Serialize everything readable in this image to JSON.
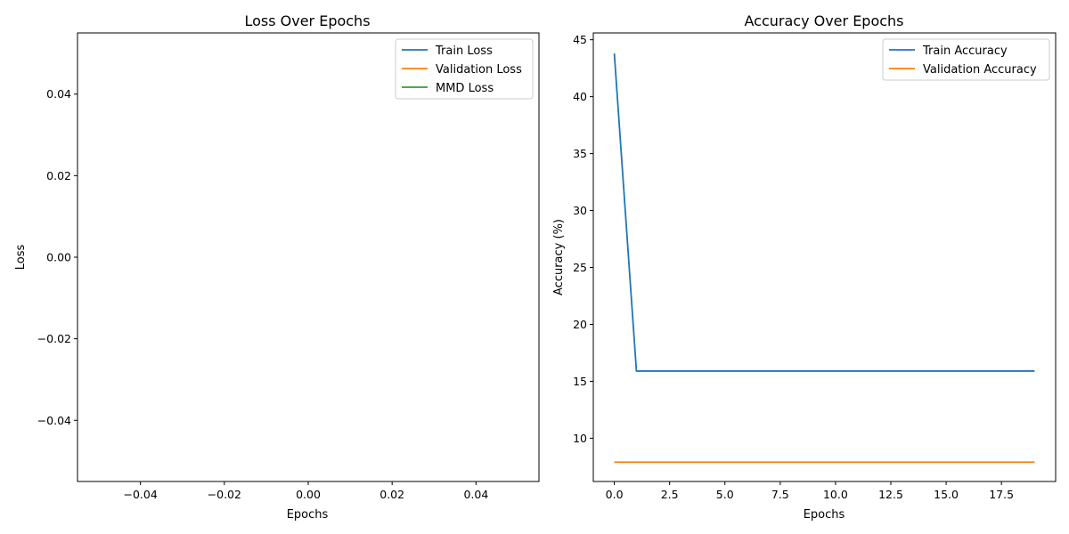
{
  "colors": {
    "series_1": "#1f77b4",
    "series_2": "#ff7f0e",
    "series_3": "#2ca02c",
    "axes": "#000000",
    "legend_border": "#cccccc"
  },
  "chart_data": [
    {
      "type": "line",
      "title": "Loss Over Epochs",
      "xlabel": "Epochs",
      "ylabel": "Loss",
      "xlim": [
        -0.055,
        0.055
      ],
      "ylim": [
        -0.055,
        0.055
      ],
      "xticks": [
        -0.04,
        -0.02,
        0.0,
        0.02,
        0.04
      ],
      "xtick_labels": [
        "−0.04",
        "−0.02",
        "0.00",
        "0.02",
        "0.04"
      ],
      "yticks": [
        -0.04,
        -0.02,
        0.0,
        0.02,
        0.04
      ],
      "ytick_labels": [
        "−0.04",
        "−0.02",
        "0.00",
        "0.02",
        "0.04"
      ],
      "grid": false,
      "legend": "top-right",
      "series": [
        {
          "name": "Train Loss",
          "x": [],
          "values": []
        },
        {
          "name": "Validation Loss",
          "x": [],
          "values": []
        },
        {
          "name": "MMD Loss",
          "x": [],
          "values": []
        }
      ]
    },
    {
      "type": "line",
      "title": "Accuracy Over Epochs",
      "xlabel": "Epochs",
      "ylabel": "Accuracy (%)",
      "xlim": [
        -0.95,
        19.95
      ],
      "ylim": [
        6.2,
        45.6
      ],
      "xticks": [
        0,
        2.5,
        5,
        7.5,
        10,
        12.5,
        15,
        17.5
      ],
      "xtick_labels": [
        "0.0",
        "2.5",
        "5.0",
        "7.5",
        "10.0",
        "12.5",
        "15.0",
        "17.5"
      ],
      "yticks": [
        10,
        15,
        20,
        25,
        30,
        35,
        40,
        45
      ],
      "ytick_labels": [
        "10",
        "15",
        "20",
        "25",
        "30",
        "35",
        "40",
        "45"
      ],
      "grid": false,
      "legend": "top-right",
      "series": [
        {
          "name": "Train Accuracy",
          "x": [
            0,
            1,
            2,
            3,
            4,
            5,
            6,
            7,
            8,
            9,
            10,
            11,
            12,
            13,
            14,
            15,
            16,
            17,
            18,
            19
          ],
          "values": [
            43.8,
            15.9,
            15.9,
            15.9,
            15.9,
            15.9,
            15.9,
            15.9,
            15.9,
            15.9,
            15.9,
            15.9,
            15.9,
            15.9,
            15.9,
            15.9,
            15.9,
            15.9,
            15.9,
            15.9
          ]
        },
        {
          "name": "Validation Accuracy",
          "x": [
            0,
            1,
            2,
            3,
            4,
            5,
            6,
            7,
            8,
            9,
            10,
            11,
            12,
            13,
            14,
            15,
            16,
            17,
            18,
            19
          ],
          "values": [
            7.9,
            7.9,
            7.9,
            7.9,
            7.9,
            7.9,
            7.9,
            7.9,
            7.9,
            7.9,
            7.9,
            7.9,
            7.9,
            7.9,
            7.9,
            7.9,
            7.9,
            7.9,
            7.9,
            7.9
          ]
        }
      ]
    }
  ]
}
